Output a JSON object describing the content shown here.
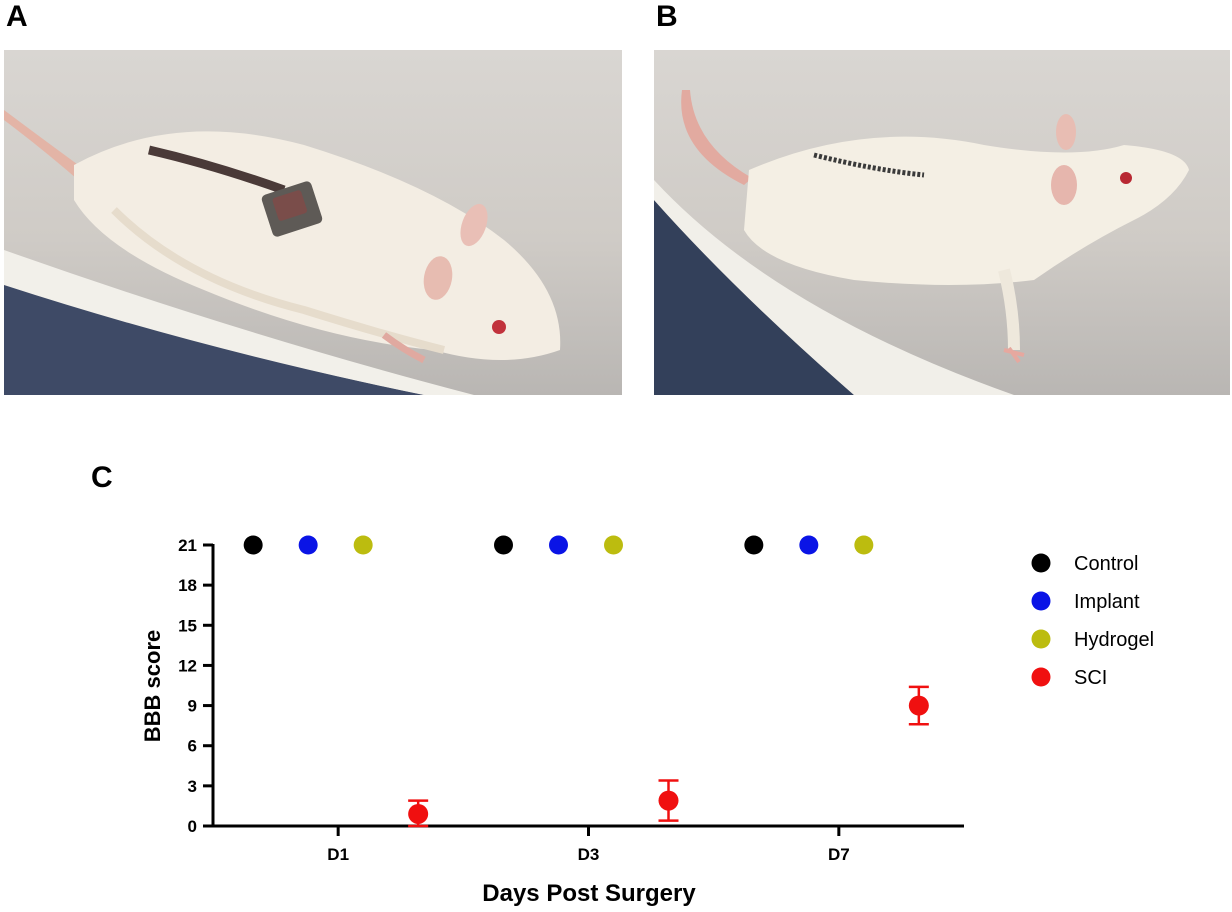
{
  "panels": {
    "a_label": "A",
    "b_label": "B",
    "c_label": "C"
  },
  "colors": {
    "control": "#000000",
    "implant": "#0a14e6",
    "hydrogel": "#bcbc0f",
    "sci": "#f01010"
  },
  "chart_data": {
    "type": "scatter",
    "categories": [
      "D1",
      "D3",
      "D7"
    ],
    "xlabel": "Days Post Surgery",
    "ylabel": "BBB score",
    "ylim": [
      0,
      21
    ],
    "yticks": [
      0,
      3,
      6,
      9,
      12,
      15,
      18,
      21
    ],
    "grid": false,
    "legend_position": "right",
    "series": [
      {
        "name": "Control",
        "color": "#000000",
        "values": [
          21,
          21,
          21
        ],
        "errors": [
          0,
          0,
          0
        ]
      },
      {
        "name": "Implant",
        "color": "#0a14e6",
        "values": [
          21,
          21,
          21
        ],
        "errors": [
          0,
          0,
          0
        ]
      },
      {
        "name": "Hydrogel",
        "color": "#bcbc0f",
        "values": [
          21,
          21,
          21
        ],
        "errors": [
          0,
          0,
          0
        ]
      },
      {
        "name": "SCI",
        "color": "#f01010",
        "values": [
          0.9,
          1.9,
          9
        ],
        "errors": [
          1.0,
          1.5,
          1.4
        ]
      }
    ]
  }
}
